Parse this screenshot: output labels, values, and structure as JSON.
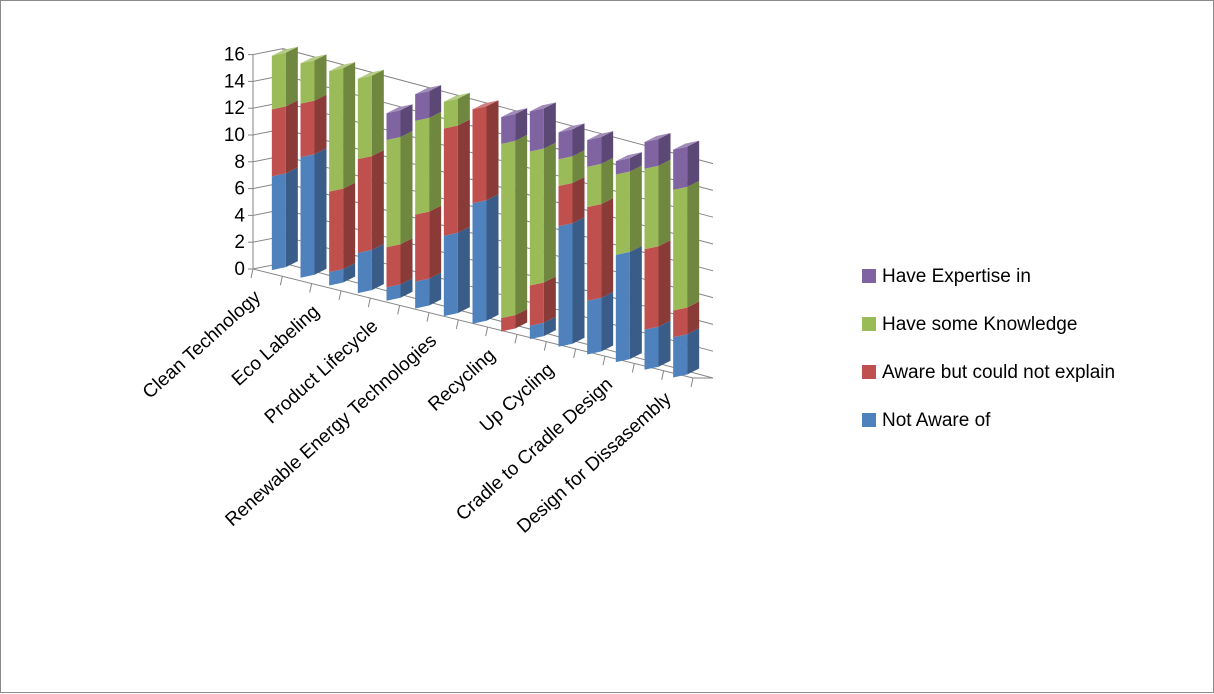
{
  "chart_data": {
    "type": "bar",
    "stacked": true,
    "three_d": true,
    "title": "",
    "xlabel": "",
    "ylabel": "",
    "ylim": [
      0,
      16
    ],
    "yticks": [
      0,
      2,
      4,
      6,
      8,
      10,
      12,
      14,
      16
    ],
    "grid": true,
    "legend_position": "right",
    "categories": [
      "Clean Technology",
      "",
      "Eco Labeling",
      "",
      "Product Lifecycle",
      "",
      "Renewable Energy Technologies",
      "",
      "Recycling",
      "",
      "Up Cycling",
      "",
      "Cradle to Cradle Design",
      "",
      "Design for Dissasembly"
    ],
    "series": [
      {
        "name": "Not Aware of",
        "color": "#4f81bd",
        "values": [
          7,
          9,
          1,
          3,
          1,
          2,
          6,
          9,
          0,
          1,
          9,
          4,
          8,
          3,
          3
        ]
      },
      {
        "name": "Aware but could not explain",
        "color": "#c0504d",
        "values": [
          5,
          4,
          6,
          7,
          3,
          5,
          8,
          7,
          1,
          3,
          3,
          7,
          0,
          6,
          2
        ]
      },
      {
        "name": "Have some Knowledge",
        "color": "#9bbb59",
        "values": [
          4,
          3,
          9,
          6,
          8,
          7,
          2,
          0,
          13,
          10,
          2,
          3,
          6,
          6,
          9
        ]
      },
      {
        "name": "Have Expertise in",
        "color": "#8064a2",
        "values": [
          0,
          0,
          0,
          0,
          2,
          2,
          0,
          0,
          2,
          3,
          2,
          2,
          1,
          2,
          3
        ]
      }
    ]
  }
}
